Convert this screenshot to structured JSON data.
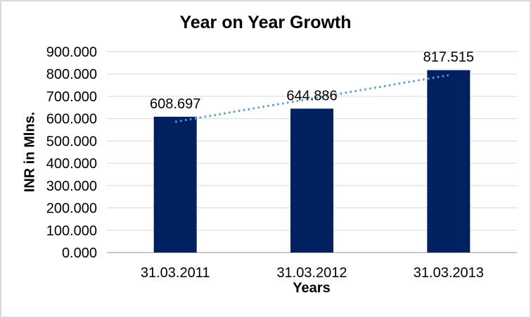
{
  "window": {
    "background": "#FFFFFF",
    "border_color": "#D9D9D9"
  },
  "chart_data": {
    "type": "bar",
    "title": "Year on Year Growth",
    "xlabel": "Years",
    "ylabel": "INR in Mlns.",
    "categories": [
      "31.03.2011",
      "31.03.2012",
      "31.03.2013"
    ],
    "values": [
      608.697,
      644.886,
      817.515
    ],
    "data_labels": [
      "608.697",
      "644.886",
      "817.515"
    ],
    "y_ticks": [
      {
        "value": 900,
        "label": "900.000"
      },
      {
        "value": 800,
        "label": "800.000"
      },
      {
        "value": 700,
        "label": "700.000"
      },
      {
        "value": 600,
        "label": "600.000"
      },
      {
        "value": 500,
        "label": "500.000"
      },
      {
        "value": 400,
        "label": "400.000"
      },
      {
        "value": 300,
        "label": "300.000"
      },
      {
        "value": 200,
        "label": "200.000"
      },
      {
        "value": 100,
        "label": "100.000"
      },
      {
        "value": 0,
        "label": "0.000"
      }
    ],
    "ylim": [
      0,
      900
    ],
    "grid": true,
    "legend": "none",
    "colors": {
      "bar": "#002060",
      "trendline": "#5B9BD5",
      "gridline": "#D9D9D9",
      "axis_line": "#C9C9C9",
      "text": "#000000"
    },
    "trendline": {
      "type": "linear",
      "style": "dotted"
    }
  }
}
